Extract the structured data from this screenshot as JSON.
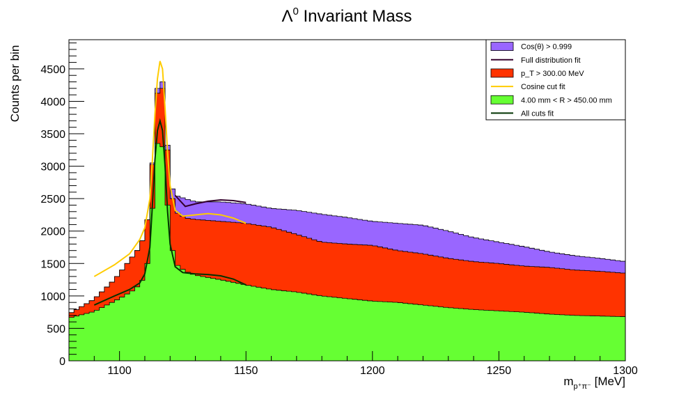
{
  "chart_data": {
    "type": "histogram",
    "title_main": "Λ",
    "title_sup": "0",
    "title_rest": " Invariant Mass",
    "xlabel_main": "m",
    "xlabel_sub": "p⁺π⁻",
    "xlabel_unit": " [MeV]",
    "ylabel": "Counts per bin",
    "xlim": [
      1080,
      1300
    ],
    "ylim": [
      0,
      4950
    ],
    "x_ticks": [
      1100,
      1150,
      1200,
      1250,
      1300
    ],
    "y_ticks": [
      0,
      500,
      1000,
      1500,
      2000,
      2500,
      3000,
      3500,
      4000,
      4500
    ],
    "bin_width": 2,
    "colors": {
      "cos_fill": "#9966ff",
      "pt_fill": "#ff3300",
      "r_fill": "#66ff33",
      "full_fit": "#33002b",
      "cos_fit": "#ffcc00",
      "cuts_fit": "#003300"
    },
    "legend": [
      {
        "label": "Cos(θ) > 0.999",
        "kind": "box",
        "color": "#9966ff"
      },
      {
        "label": "Full distribution fit",
        "kind": "line",
        "color": "#33002b"
      },
      {
        "label": "p_T > 300.00 MeV",
        "kind": "box",
        "color": "#ff3300"
      },
      {
        "label": "Cosine cut fit",
        "kind": "line",
        "color": "#ffcc00"
      },
      {
        "label": "4.00 mm < R > 450.00 mm",
        "kind": "box",
        "color": "#66ff33"
      },
      {
        "label": "All cuts fit",
        "kind": "line",
        "color": "#003300"
      }
    ],
    "series": [
      {
        "name": "Cos(θ) > 0.999",
        "points": [
          [
            1080,
            720
          ],
          [
            1090,
            950
          ],
          [
            1098,
            1250
          ],
          [
            1104,
            1550
          ],
          [
            1108,
            1750
          ],
          [
            1110,
            1950
          ],
          [
            1112,
            2400
          ],
          [
            1114,
            3700
          ],
          [
            1116,
            4700
          ],
          [
            1118,
            3900
          ],
          [
            1120,
            2750
          ],
          [
            1122,
            2550
          ],
          [
            1126,
            2500
          ],
          [
            1130,
            2450
          ],
          [
            1140,
            2450
          ],
          [
            1150,
            2420
          ],
          [
            1160,
            2350
          ],
          [
            1170,
            2320
          ],
          [
            1180,
            2260
          ],
          [
            1190,
            2210
          ],
          [
            1200,
            2150
          ],
          [
            1210,
            2120
          ],
          [
            1220,
            2090
          ],
          [
            1230,
            2000
          ],
          [
            1240,
            1900
          ],
          [
            1250,
            1830
          ],
          [
            1260,
            1760
          ],
          [
            1270,
            1680
          ],
          [
            1280,
            1620
          ],
          [
            1290,
            1580
          ],
          [
            1300,
            1530
          ]
        ]
      },
      {
        "name": "p_T > 300.00 MeV",
        "points": [
          [
            1080,
            720
          ],
          [
            1090,
            950
          ],
          [
            1098,
            1250
          ],
          [
            1104,
            1550
          ],
          [
            1108,
            1750
          ],
          [
            1110,
            1950
          ],
          [
            1112,
            2400
          ],
          [
            1114,
            3650
          ],
          [
            1116,
            4600
          ],
          [
            1118,
            3800
          ],
          [
            1120,
            2700
          ],
          [
            1122,
            2300
          ],
          [
            1126,
            2200
          ],
          [
            1130,
            2180
          ],
          [
            1140,
            2150
          ],
          [
            1150,
            2120
          ],
          [
            1160,
            2060
          ],
          [
            1170,
            1950
          ],
          [
            1180,
            1830
          ],
          [
            1190,
            1800
          ],
          [
            1200,
            1780
          ],
          [
            1210,
            1700
          ],
          [
            1220,
            1650
          ],
          [
            1230,
            1580
          ],
          [
            1240,
            1530
          ],
          [
            1250,
            1500
          ],
          [
            1260,
            1460
          ],
          [
            1270,
            1440
          ],
          [
            1280,
            1400
          ],
          [
            1290,
            1380
          ],
          [
            1300,
            1350
          ]
        ]
      },
      {
        "name": "4.00 mm < R > 450.00 mm",
        "points": [
          [
            1080,
            660
          ],
          [
            1090,
            760
          ],
          [
            1100,
            960
          ],
          [
            1106,
            1100
          ],
          [
            1108,
            1180
          ],
          [
            1110,
            1300
          ],
          [
            1112,
            1700
          ],
          [
            1114,
            3000
          ],
          [
            1116,
            3700
          ],
          [
            1118,
            2900
          ],
          [
            1120,
            1900
          ],
          [
            1122,
            1500
          ],
          [
            1126,
            1380
          ],
          [
            1130,
            1320
          ],
          [
            1140,
            1250
          ],
          [
            1150,
            1170
          ],
          [
            1160,
            1100
          ],
          [
            1170,
            1060
          ],
          [
            1180,
            1000
          ],
          [
            1190,
            960
          ],
          [
            1200,
            920
          ],
          [
            1210,
            900
          ],
          [
            1220,
            860
          ],
          [
            1230,
            820
          ],
          [
            1240,
            790
          ],
          [
            1250,
            770
          ],
          [
            1260,
            750
          ],
          [
            1270,
            720
          ],
          [
            1280,
            700
          ],
          [
            1290,
            690
          ],
          [
            1300,
            680
          ]
        ]
      }
    ],
    "fits": [
      {
        "name": "Full distribution fit",
        "points": [
          [
            1122,
            2550
          ],
          [
            1126,
            2380
          ],
          [
            1130,
            2420
          ],
          [
            1135,
            2460
          ],
          [
            1140,
            2480
          ],
          [
            1145,
            2470
          ],
          [
            1150,
            2440
          ]
        ]
      },
      {
        "name": "Cosine cut fit",
        "points": [
          [
            1090,
            1300
          ],
          [
            1098,
            1480
          ],
          [
            1104,
            1650
          ],
          [
            1108,
            1870
          ],
          [
            1110,
            2050
          ],
          [
            1112,
            2500
          ],
          [
            1113,
            3100
          ],
          [
            1114,
            3800
          ],
          [
            1115,
            4350
          ],
          [
            1116,
            4620
          ],
          [
            1117,
            4500
          ],
          [
            1118,
            3900
          ],
          [
            1119,
            3200
          ],
          [
            1120,
            2700
          ],
          [
            1122,
            2320
          ],
          [
            1125,
            2230
          ],
          [
            1130,
            2250
          ],
          [
            1135,
            2270
          ],
          [
            1140,
            2250
          ],
          [
            1145,
            2200
          ],
          [
            1150,
            2120
          ]
        ]
      },
      {
        "name": "All cuts fit",
        "points": [
          [
            1090,
            860
          ],
          [
            1098,
            1000
          ],
          [
            1104,
            1100
          ],
          [
            1108,
            1200
          ],
          [
            1110,
            1340
          ],
          [
            1112,
            1750
          ],
          [
            1113,
            2400
          ],
          [
            1114,
            3100
          ],
          [
            1115,
            3550
          ],
          [
            1116,
            3700
          ],
          [
            1117,
            3550
          ],
          [
            1118,
            3000
          ],
          [
            1119,
            2300
          ],
          [
            1120,
            1800
          ],
          [
            1122,
            1450
          ],
          [
            1125,
            1360
          ],
          [
            1130,
            1340
          ],
          [
            1135,
            1330
          ],
          [
            1140,
            1310
          ],
          [
            1145,
            1260
          ],
          [
            1150,
            1170
          ]
        ]
      }
    ]
  }
}
